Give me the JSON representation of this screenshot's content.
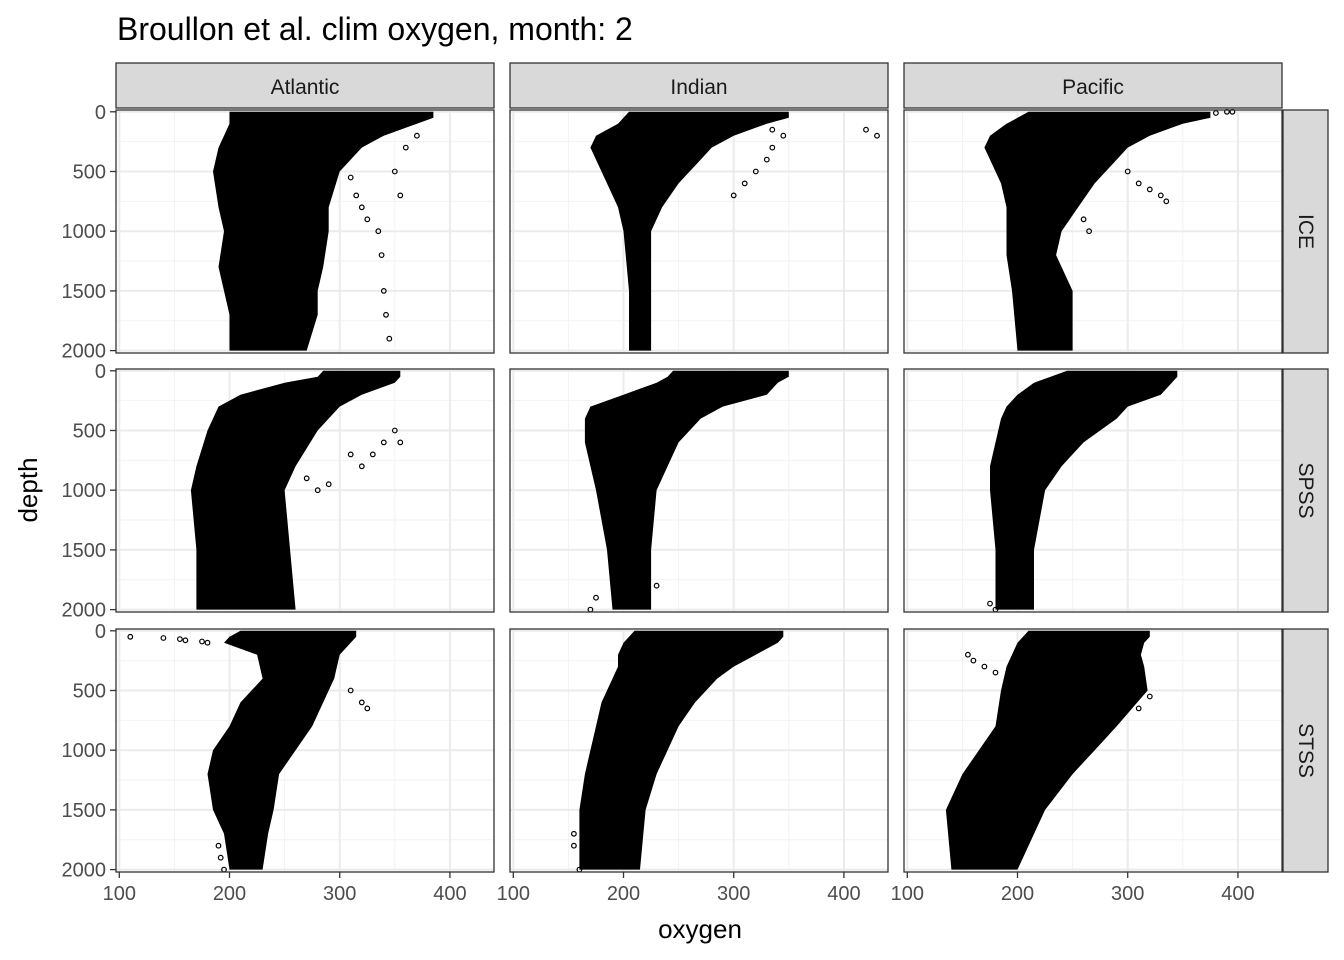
{
  "chart_data": {
    "type": "scatter",
    "title": "Broullon et al. clim oxygen, month: 2",
    "xlabel": "oxygen",
    "ylabel": "depth",
    "xlim": [
      97,
      440
    ],
    "ylim": [
      2020,
      -15
    ],
    "y_reversed": true,
    "xticks": [
      100,
      200,
      300,
      400
    ],
    "yticks": [
      0,
      500,
      1000,
      1500,
      2000
    ],
    "xtick_labels": [
      "100",
      "200",
      "300",
      "400"
    ],
    "ytick_labels": [
      "0",
      "500",
      "1000",
      "1500",
      "2000"
    ],
    "grid": true,
    "legend": "none",
    "point_color": "#000000",
    "facet_cols": [
      "Atlantic",
      "Indian",
      "Pacific"
    ],
    "facet_rows": [
      "ICE",
      "SPSS",
      "STSS"
    ],
    "panels": [
      {
        "col": "Atlantic",
        "row": "ICE",
        "envelope": [
          [
            0,
            200,
            385
          ],
          [
            50,
            200,
            385
          ],
          [
            100,
            200,
            370
          ],
          [
            200,
            195,
            340
          ],
          [
            300,
            190,
            320
          ],
          [
            500,
            185,
            300
          ],
          [
            800,
            190,
            290
          ],
          [
            1000,
            195,
            290
          ],
          [
            1300,
            190,
            285
          ],
          [
            1500,
            195,
            280
          ],
          [
            1700,
            200,
            280
          ],
          [
            2000,
            200,
            270
          ]
        ],
        "outliers": [
          [
            305,
            400
          ],
          [
            310,
            550
          ],
          [
            315,
            700
          ],
          [
            320,
            800
          ],
          [
            325,
            900
          ],
          [
            335,
            1000
          ],
          [
            338,
            1200
          ],
          [
            340,
            1500
          ],
          [
            342,
            1700
          ],
          [
            345,
            1900
          ],
          [
            350,
            500
          ],
          [
            355,
            700
          ],
          [
            360,
            300
          ],
          [
            370,
            200
          ]
        ]
      },
      {
        "col": "Indian",
        "row": "ICE",
        "envelope": [
          [
            0,
            205,
            350
          ],
          [
            50,
            200,
            350
          ],
          [
            100,
            195,
            330
          ],
          [
            200,
            175,
            300
          ],
          [
            300,
            170,
            280
          ],
          [
            400,
            175,
            270
          ],
          [
            600,
            185,
            250
          ],
          [
            800,
            195,
            235
          ],
          [
            1000,
            200,
            225
          ],
          [
            1500,
            205,
            225
          ],
          [
            2000,
            205,
            225
          ]
        ],
        "outliers": [
          [
            320,
            100
          ],
          [
            335,
            150
          ],
          [
            345,
            200
          ],
          [
            335,
            300
          ],
          [
            330,
            400
          ],
          [
            320,
            500
          ],
          [
            310,
            600
          ],
          [
            300,
            700
          ],
          [
            420,
            150
          ],
          [
            430,
            200
          ]
        ]
      },
      {
        "col": "Pacific",
        "row": "ICE",
        "envelope": [
          [
            0,
            210,
            375
          ],
          [
            50,
            200,
            375
          ],
          [
            100,
            190,
            350
          ],
          [
            200,
            175,
            320
          ],
          [
            300,
            170,
            300
          ],
          [
            400,
            175,
            290
          ],
          [
            600,
            185,
            270
          ],
          [
            800,
            190,
            255
          ],
          [
            1000,
            190,
            240
          ],
          [
            1200,
            190,
            235
          ],
          [
            1500,
            195,
            250
          ],
          [
            2000,
            200,
            250
          ]
        ],
        "outliers": [
          [
            300,
            500
          ],
          [
            310,
            600
          ],
          [
            320,
            650
          ],
          [
            330,
            700
          ],
          [
            335,
            750
          ],
          [
            250,
            800
          ],
          [
            260,
            900
          ],
          [
            265,
            1000
          ],
          [
            395,
            0
          ],
          [
            390,
            0
          ],
          [
            380,
            10
          ]
        ]
      },
      {
        "col": "Atlantic",
        "row": "SPSS",
        "envelope": [
          [
            0,
            285,
            355
          ],
          [
            50,
            280,
            355
          ],
          [
            100,
            250,
            350
          ],
          [
            200,
            210,
            320
          ],
          [
            300,
            190,
            300
          ],
          [
            500,
            180,
            280
          ],
          [
            800,
            170,
            260
          ],
          [
            1000,
            165,
            250
          ],
          [
            1500,
            170,
            255
          ],
          [
            2000,
            170,
            260
          ]
        ],
        "outliers": [
          [
            310,
            700
          ],
          [
            320,
            800
          ],
          [
            330,
            700
          ],
          [
            340,
            600
          ],
          [
            350,
            500
          ],
          [
            355,
            600
          ],
          [
            270,
            900
          ],
          [
            280,
            1000
          ],
          [
            290,
            950
          ]
        ]
      },
      {
        "col": "Indian",
        "row": "SPSS",
        "envelope": [
          [
            0,
            245,
            350
          ],
          [
            50,
            240,
            350
          ],
          [
            100,
            230,
            340
          ],
          [
            200,
            200,
            330
          ],
          [
            300,
            170,
            290
          ],
          [
            400,
            165,
            270
          ],
          [
            600,
            165,
            250
          ],
          [
            800,
            170,
            240
          ],
          [
            1000,
            175,
            230
          ],
          [
            1500,
            185,
            225
          ],
          [
            2000,
            190,
            225
          ]
        ],
        "outliers": [
          [
            175,
            1900
          ],
          [
            170,
            2000
          ],
          [
            230,
            1800
          ]
        ]
      },
      {
        "col": "Pacific",
        "row": "SPSS",
        "envelope": [
          [
            0,
            245,
            345
          ],
          [
            50,
            230,
            345
          ],
          [
            100,
            215,
            340
          ],
          [
            200,
            200,
            330
          ],
          [
            300,
            190,
            300
          ],
          [
            400,
            185,
            290
          ],
          [
            600,
            180,
            260
          ],
          [
            800,
            175,
            240
          ],
          [
            1000,
            175,
            225
          ],
          [
            1500,
            180,
            215
          ],
          [
            2000,
            180,
            215
          ]
        ],
        "outliers": [
          [
            180,
            2000
          ],
          [
            175,
            1950
          ]
        ]
      },
      {
        "col": "Atlantic",
        "row": "STSS",
        "envelope": [
          [
            0,
            210,
            315
          ],
          [
            50,
            200,
            315
          ],
          [
            100,
            195,
            310
          ],
          [
            200,
            225,
            300
          ],
          [
            400,
            230,
            295
          ],
          [
            600,
            210,
            285
          ],
          [
            800,
            200,
            275
          ],
          [
            1000,
            185,
            260
          ],
          [
            1200,
            180,
            245
          ],
          [
            1500,
            185,
            240
          ],
          [
            1700,
            195,
            235
          ],
          [
            2000,
            200,
            230
          ]
        ],
        "outliers": [
          [
            110,
            50
          ],
          [
            140,
            60
          ],
          [
            155,
            70
          ],
          [
            160,
            80
          ],
          [
            175,
            90
          ],
          [
            180,
            100
          ],
          [
            310,
            500
          ],
          [
            320,
            600
          ],
          [
            325,
            650
          ],
          [
            190,
            1800
          ],
          [
            192,
            1900
          ],
          [
            195,
            2000
          ]
        ]
      },
      {
        "col": "Indian",
        "row": "STSS",
        "envelope": [
          [
            0,
            210,
            345
          ],
          [
            50,
            205,
            345
          ],
          [
            100,
            200,
            340
          ],
          [
            200,
            195,
            320
          ],
          [
            300,
            195,
            300
          ],
          [
            400,
            190,
            285
          ],
          [
            600,
            180,
            265
          ],
          [
            800,
            175,
            250
          ],
          [
            1000,
            170,
            240
          ],
          [
            1200,
            165,
            230
          ],
          [
            1500,
            160,
            220
          ],
          [
            2000,
            160,
            215
          ]
        ],
        "outliers": [
          [
            155,
            1700
          ],
          [
            155,
            1800
          ],
          [
            160,
            2000
          ]
        ]
      },
      {
        "col": "Pacific",
        "row": "STSS",
        "envelope": [
          [
            0,
            210,
            320
          ],
          [
            50,
            205,
            320
          ],
          [
            100,
            200,
            315
          ],
          [
            200,
            195,
            312
          ],
          [
            300,
            190,
            315
          ],
          [
            500,
            185,
            318
          ],
          [
            800,
            180,
            290
          ],
          [
            1000,
            165,
            270
          ],
          [
            1200,
            150,
            250
          ],
          [
            1500,
            135,
            225
          ],
          [
            2000,
            140,
            200
          ]
        ],
        "outliers": [
          [
            155,
            200
          ],
          [
            160,
            250
          ],
          [
            170,
            300
          ],
          [
            180,
            350
          ],
          [
            195,
            300
          ],
          [
            210,
            250
          ],
          [
            300,
            600
          ],
          [
            320,
            550
          ],
          [
            310,
            650
          ]
        ]
      }
    ]
  }
}
